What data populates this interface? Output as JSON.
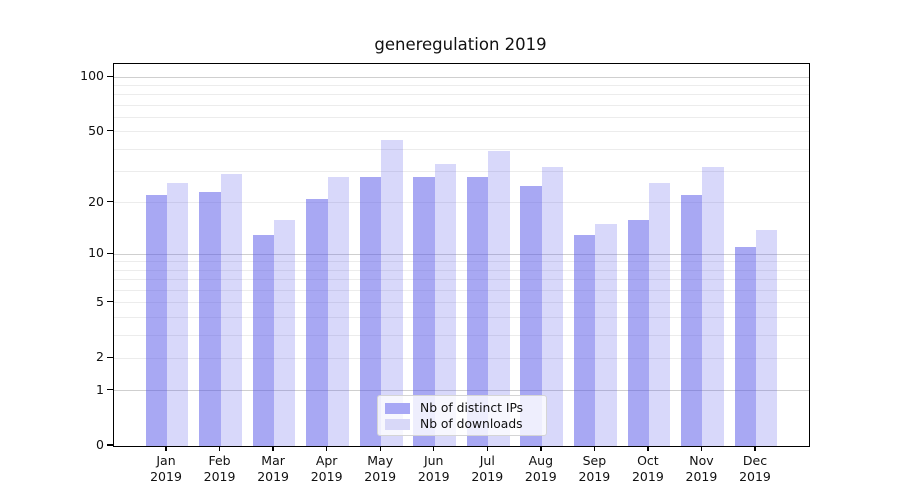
{
  "chart_data": {
    "type": "bar",
    "title": "generegulation 2019",
    "categories": [
      "Jan",
      "Feb",
      "Mar",
      "Apr",
      "May",
      "Jun",
      "Jul",
      "Aug",
      "Sep",
      "Oct",
      "Nov",
      "Dec"
    ],
    "category_year": "2019",
    "series": [
      {
        "name": "Nb of distinct IPs",
        "values": [
          22,
          23,
          13,
          21,
          28,
          28,
          28,
          25,
          13,
          16,
          22,
          11
        ],
        "fill_rgba": "rgba(85,85,232,0.51)",
        "swatch_color": "#a8a8f5"
      },
      {
        "name": "Nb of downloads",
        "values": [
          26,
          29,
          16,
          28,
          45,
          33,
          39,
          32,
          15,
          26,
          32,
          14
        ],
        "fill_rgba": "rgba(85,85,232,0.23)",
        "swatch_color": "#d8d8f8"
      }
    ],
    "y_axis": {
      "scale": "log1p",
      "tick_values": [
        0,
        1,
        2,
        5,
        10,
        20,
        50,
        100
      ],
      "gridline_values": [
        1,
        2,
        3,
        4,
        5,
        6,
        7,
        8,
        9,
        10,
        20,
        30,
        40,
        50,
        60,
        70,
        80,
        90,
        100
      ],
      "major_gridline_values": [
        1,
        10,
        100
      ],
      "ylim": [
        0,
        118
      ]
    },
    "legend_position": "lower center",
    "grid": true
  },
  "colors": {
    "grid_major": "#cfcfcf",
    "grid_minor": "#ececec",
    "spine": "#000000",
    "text": "#111111"
  }
}
